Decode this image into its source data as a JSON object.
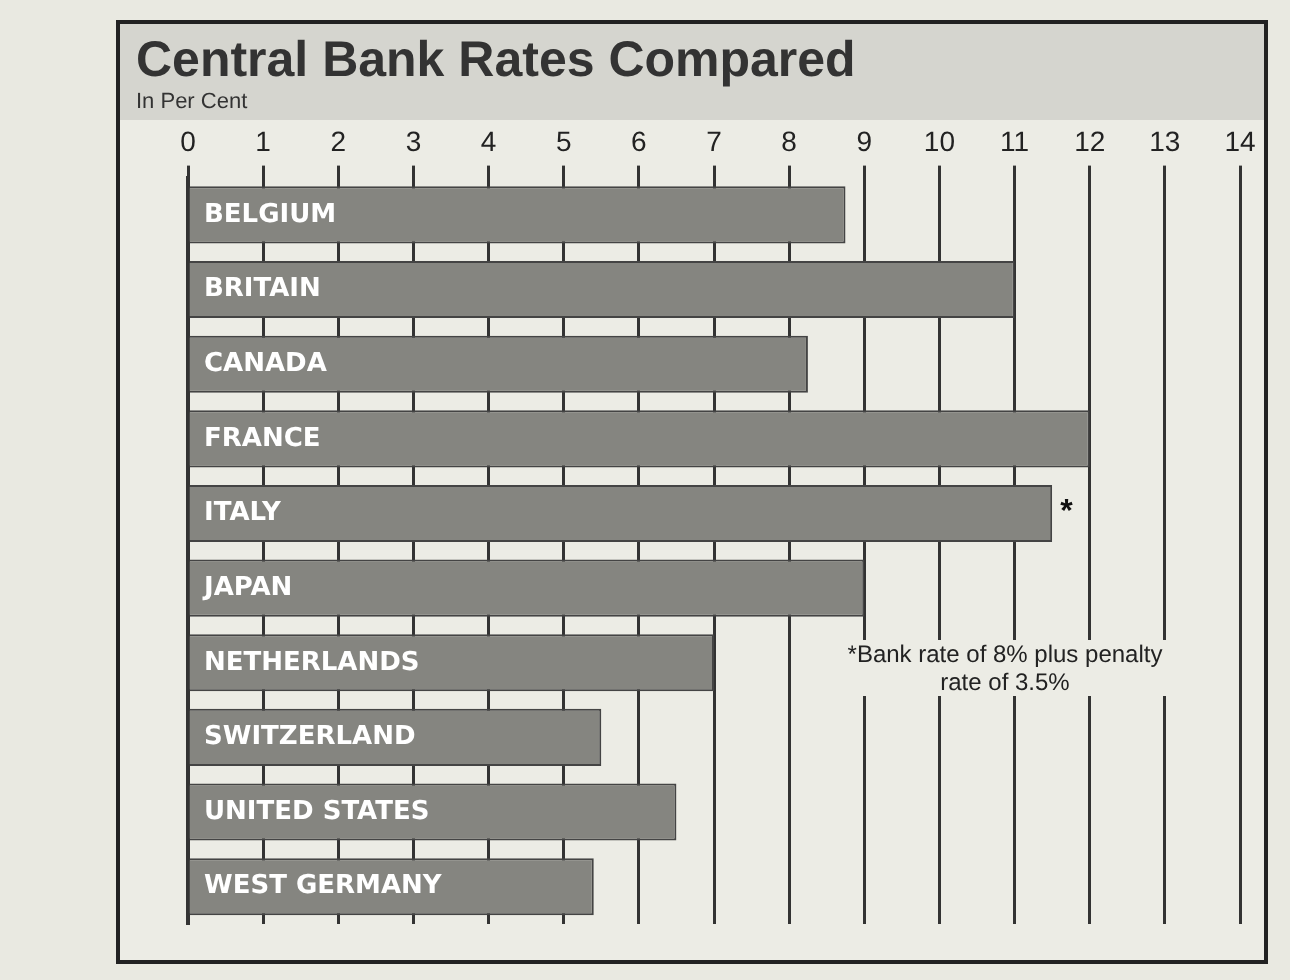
{
  "chart_data": {
    "type": "bar",
    "orientation": "horizontal",
    "title": "Central Bank Rates Compared",
    "subtitle": "In Per Cent",
    "categories": [
      "BELGIUM",
      "BRITAIN",
      "CANADA",
      "FRANCE",
      "ITALY",
      "JAPAN",
      "NETHERLANDS",
      "SWITZERLAND",
      "UNITED STATES",
      "WEST GERMANY"
    ],
    "values": [
      8.75,
      11,
      8.25,
      12,
      11.5,
      9,
      7,
      5.5,
      6.5,
      5.4
    ],
    "color": "#858580",
    "xlim": [
      0,
      14
    ],
    "xticks": [
      0,
      1,
      2,
      3,
      4,
      5,
      6,
      7,
      8,
      9,
      10,
      11,
      12,
      13,
      14
    ],
    "grid": "x",
    "annotations": [
      {
        "text": "*",
        "x": 11.5,
        "y": "ITALY"
      },
      "*Bank rate of 8% plus penalty rate of 3.5%"
    ]
  }
}
